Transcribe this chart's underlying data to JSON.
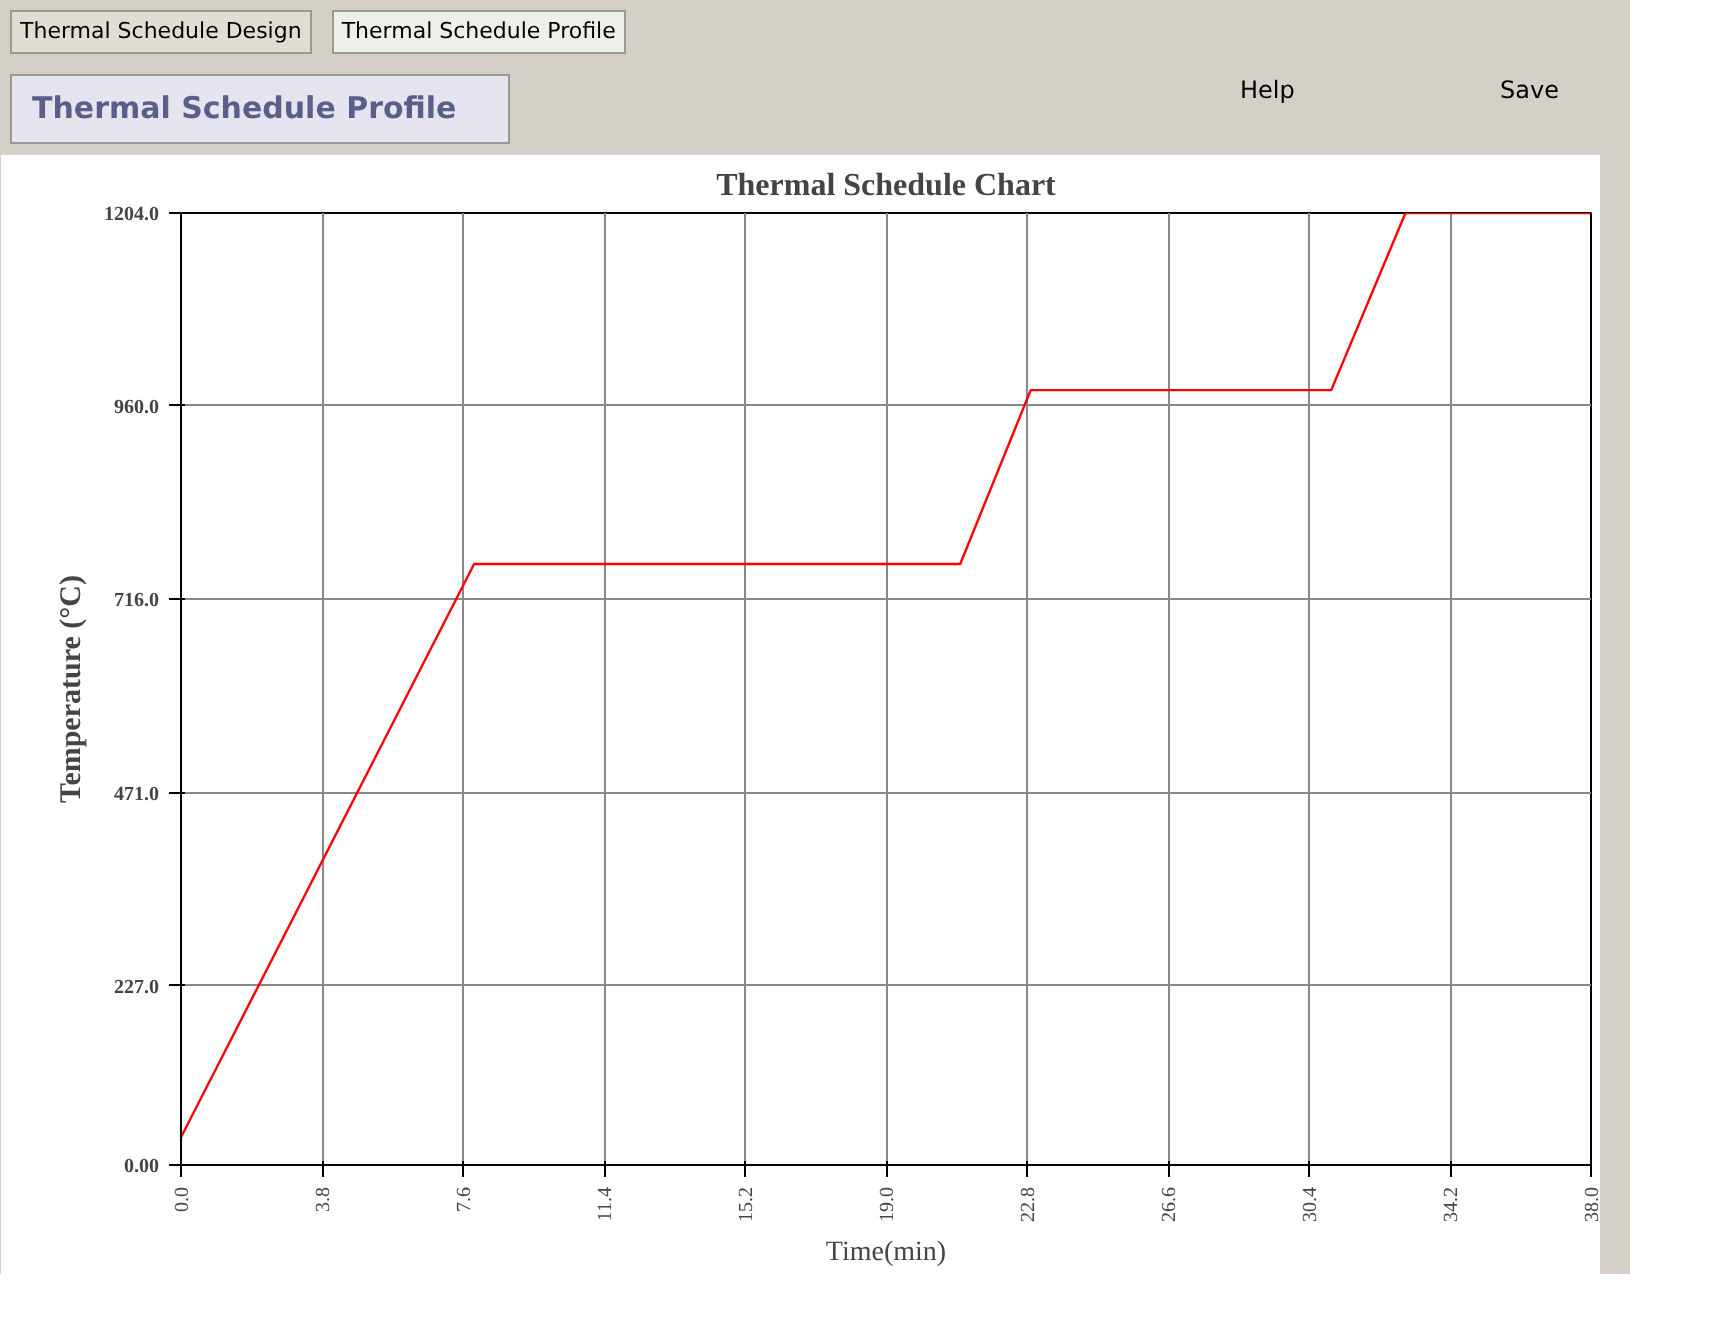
{
  "chart_data": {
    "type": "line",
    "title": "Thermal Schedule Chart",
    "xlabel": "Time(min)",
    "ylabel": "Temperature (°C)",
    "annotations": [
      "Thermal Schedule Design",
      "Thermal Schedule Profile",
      "Thermal Schedule Profile",
      "Help",
      "Save"
    ],
    "x": [
      0,
      7.9,
      21.0,
      22.9,
      31.0,
      33.0,
      38.0
    ],
    "series": [
      {
        "color": "#ff0000",
        "values": [
          35,
          760,
          760,
          980,
          980,
          1204,
          1204
        ]
      }
    ],
    "xlim": [
      0,
      38
    ],
    "ylim": [
      0,
      1204
    ],
    "xticks": [
      {
        "value": 0,
        "label": "0.0"
      },
      {
        "value": 3.8,
        "label": "3.8"
      },
      {
        "value": 7.6,
        "label": "7.6"
      },
      {
        "value": 11.4,
        "label": "11.4"
      },
      {
        "value": 15.2,
        "label": "15.2"
      },
      {
        "value": 19,
        "label": "19.0"
      },
      {
        "value": 22.8,
        "label": "22.8"
      },
      {
        "value": 26.6,
        "label": "26.6"
      },
      {
        "value": 30.4,
        "label": "30.4"
      },
      {
        "value": 34.2,
        "label": "34.2"
      },
      {
        "value": 38,
        "label": "38.0"
      }
    ],
    "yticks": [
      {
        "value": 0,
        "label": "0.00"
      },
      {
        "value": 227,
        "label": "227.0"
      },
      {
        "value": 471,
        "label": "471.0"
      },
      {
        "value": 716,
        "label": "716.0"
      },
      {
        "value": 960,
        "label": "960.0"
      },
      {
        "value": 1204,
        "label": "1204.0"
      }
    ],
    "grid": true,
    "marker": "none",
    "line_style": "solid"
  }
}
